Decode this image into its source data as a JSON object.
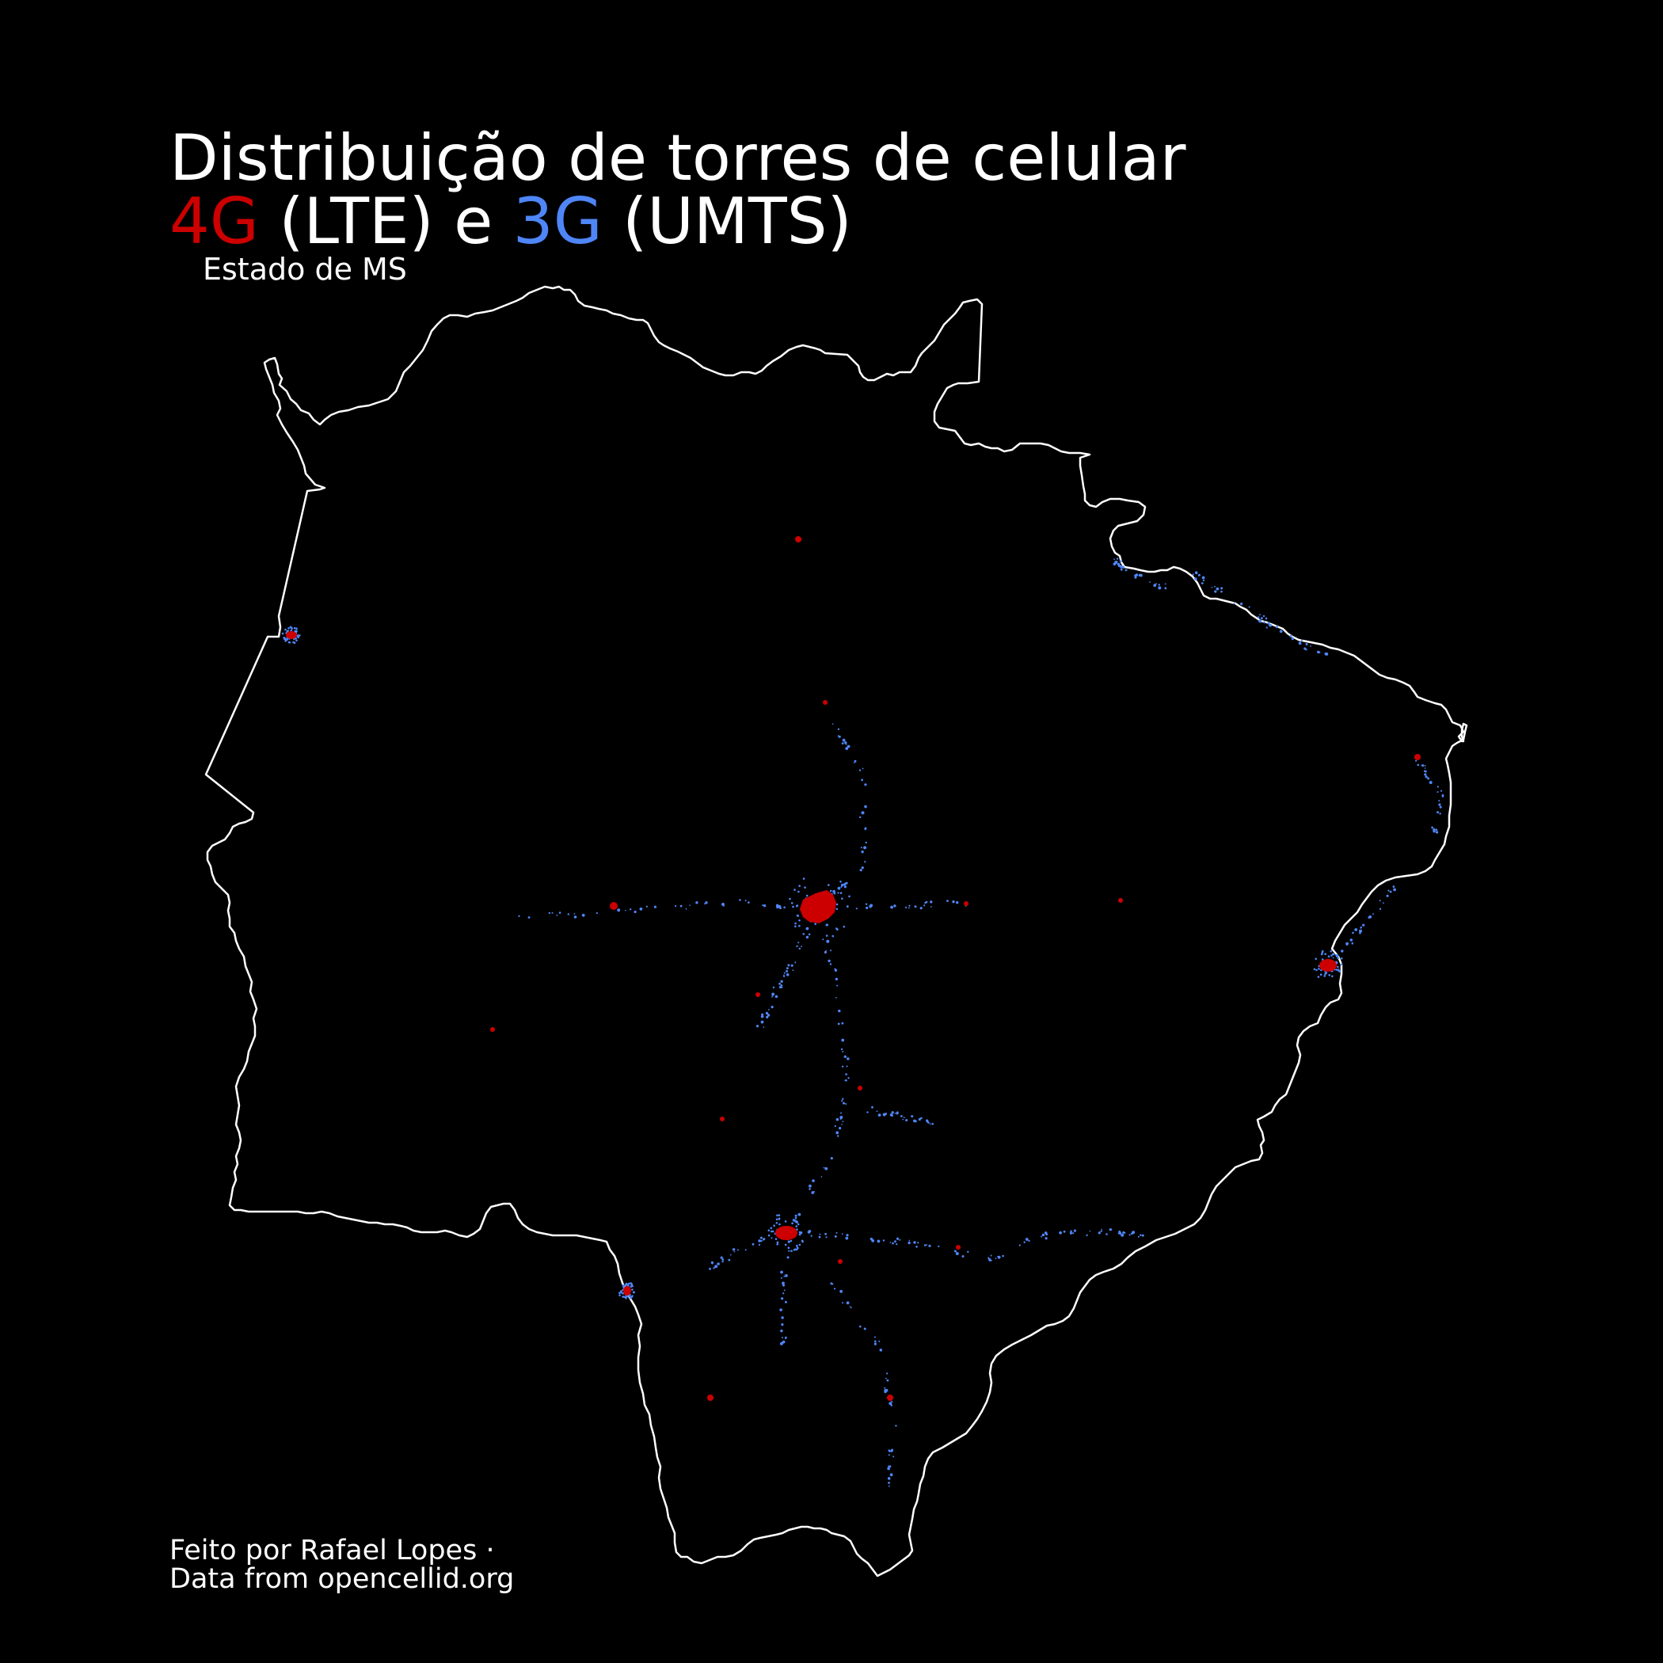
{
  "title": {
    "line1": "Distribuição de torres de celular",
    "lte_label": "4G",
    "lte_rest": " (LTE) e ",
    "umts_label": "3G",
    "umts_rest": " (UMTS)"
  },
  "subtitle": "Estado de MS",
  "credit": {
    "line1": "Feito por Rafael Lopes ·",
    "line2": "Data from opencellid.org"
  },
  "colors": {
    "background": "#000000",
    "border": "#ffffff",
    "lte": "#cc0000",
    "umts": "#4f86f7"
  },
  "layers": [
    {
      "name": "4G (LTE)",
      "color": "#cc0000"
    },
    {
      "name": "3G (UMTS)",
      "color": "#4f86f7"
    }
  ]
}
